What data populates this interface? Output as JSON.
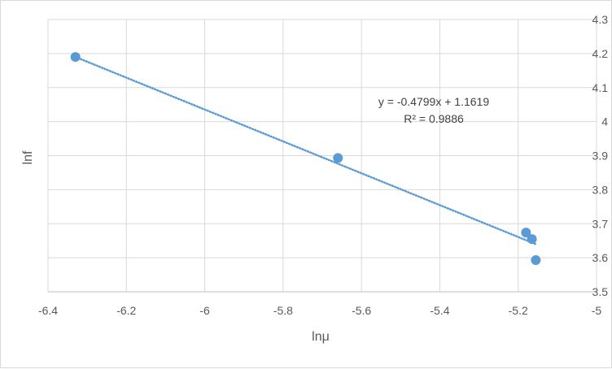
{
  "chart_data": {
    "type": "scatter",
    "title": "",
    "xlabel": "lnμ",
    "ylabel": "lnf",
    "xlim": [
      -6.4,
      -5
    ],
    "ylim": [
      3.5,
      4.3
    ],
    "x_ticks": [
      "-6.4",
      "-6.2",
      "-6",
      "-5.8",
      "-5.6",
      "-5.4",
      "-5.2",
      "-5"
    ],
    "y_ticks": [
      "3.5",
      "3.6",
      "3.7",
      "3.8",
      "3.9",
      "4",
      "4.1",
      "4.2",
      "4.3"
    ],
    "x_tick_values": [
      -6.4,
      -6.2,
      -6,
      -5.8,
      -5.6,
      -5.4,
      -5.2,
      -5
    ],
    "y_tick_values": [
      3.5,
      3.6,
      3.7,
      3.8,
      3.9,
      4.0,
      4.1,
      4.2,
      4.3
    ],
    "y_axis_side": "right",
    "grid": true,
    "legend": "none",
    "series": [
      {
        "x": [
          -6.33,
          -5.66,
          -5.18,
          -5.165,
          -5.155
        ],
        "y": [
          4.19,
          3.893,
          3.674,
          3.655,
          3.593
        ],
        "color": "#5b9bd5"
      }
    ],
    "trendline": {
      "type": "linear",
      "slope": -0.4799,
      "intercept": 1.1619,
      "x_range": [
        -6.33,
        -5.155
      ],
      "y_range": [
        4.19,
        3.64
      ],
      "style": "dotted",
      "color": "#5b9bd5",
      "equation": "y = -0.4799x + 1.1619",
      "r_squared": "R² = 0.9886"
    }
  }
}
